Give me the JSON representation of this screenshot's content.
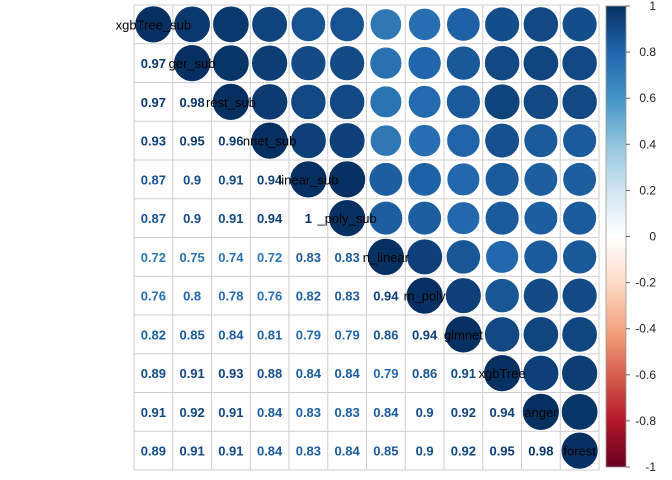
{
  "chart_data": {
    "type": "heatmap",
    "title": "",
    "variables": [
      "xgbTree_sub",
      "ranger_sub",
      "rforest_sub",
      "glmnet_sub",
      "svm_linear_sub",
      "svm_poly_sub",
      "svm_linear",
      "svm_poly",
      "glmnet",
      "xgbTree",
      "ranger",
      "rforest"
    ],
    "diagonal_labels": [
      "xgbTree_sub",
      "ger_sub",
      "rest_sub",
      "nnet_sub",
      "linear_sub",
      "_poly_sub",
      "n_linear",
      "m_poly",
      "glmnet",
      "xgbTree",
      "anger",
      "forest"
    ],
    "lower_triangle_values": [
      [],
      [
        0.97
      ],
      [
        0.97,
        0.98
      ],
      [
        0.93,
        0.95,
        0.96
      ],
      [
        0.87,
        0.9,
        0.91,
        0.94
      ],
      [
        0.87,
        0.9,
        0.91,
        0.94,
        1
      ],
      [
        0.72,
        0.75,
        0.74,
        0.72,
        0.83,
        0.83
      ],
      [
        0.76,
        0.8,
        0.78,
        0.76,
        0.82,
        0.83,
        0.94
      ],
      [
        0.82,
        0.85,
        0.84,
        0.81,
        0.79,
        0.79,
        0.86,
        0.94
      ],
      [
        0.89,
        0.91,
        0.93,
        0.88,
        0.84,
        0.84,
        0.79,
        0.86,
        0.91
      ],
      [
        0.91,
        0.92,
        0.91,
        0.84,
        0.83,
        0.83,
        0.84,
        0.9,
        0.92,
        0.94
      ],
      [
        0.89,
        0.91,
        0.91,
        0.84,
        0.83,
        0.84,
        0.85,
        0.9,
        0.92,
        0.95,
        0.98
      ]
    ],
    "value_labels": [
      [],
      [
        "0.97"
      ],
      [
        "0.97",
        "0.98"
      ],
      [
        "0.93",
        "0.95",
        "0.96"
      ],
      [
        "0.87",
        "0.9",
        "0.91",
        "0.94"
      ],
      [
        "0.87",
        "0.9",
        "0.91",
        "0.94",
        "1"
      ],
      [
        "0.72",
        "0.75",
        "0.74",
        "0.72",
        "0.83",
        "0.83"
      ],
      [
        "0.76",
        "0.8",
        "0.78",
        "0.76",
        "0.82",
        "0.83",
        "0.94"
      ],
      [
        "0.82",
        "0.85",
        "0.84",
        "0.81",
        "0.79",
        "0.79",
        "0.86",
        "0.94"
      ],
      [
        "0.89",
        "0.91",
        "0.93",
        "0.88",
        "0.84",
        "0.84",
        "0.79",
        "0.86",
        "0.91"
      ],
      [
        "0.91",
        "0.92",
        "0.91",
        "0.84",
        "0.83",
        "0.83",
        "0.84",
        "0.9",
        "0.92",
        "0.94"
      ],
      [
        "0.89",
        "0.91",
        "0.91",
        "0.84",
        "0.83",
        "0.84",
        "0.85",
        "0.9",
        "0.92",
        "0.95",
        "0.98"
      ]
    ],
    "upper_shape": "circle",
    "lower_shape": "number",
    "color_scale": {
      "range": [
        -1,
        1
      ],
      "ticks": [
        "1",
        "0.8",
        "0.6",
        "0.4",
        "0.2",
        "0",
        "-0.2",
        "-0.4",
        "-0.6",
        "-0.8",
        "-1"
      ],
      "colors": [
        "#67001F",
        "#B2182B",
        "#D6604D",
        "#F4A582",
        "#FDDBC7",
        "#FFFFFF",
        "#D1E5F0",
        "#92C5DE",
        "#4393C3",
        "#2166AC",
        "#053061"
      ]
    },
    "legend_position": "right"
  }
}
